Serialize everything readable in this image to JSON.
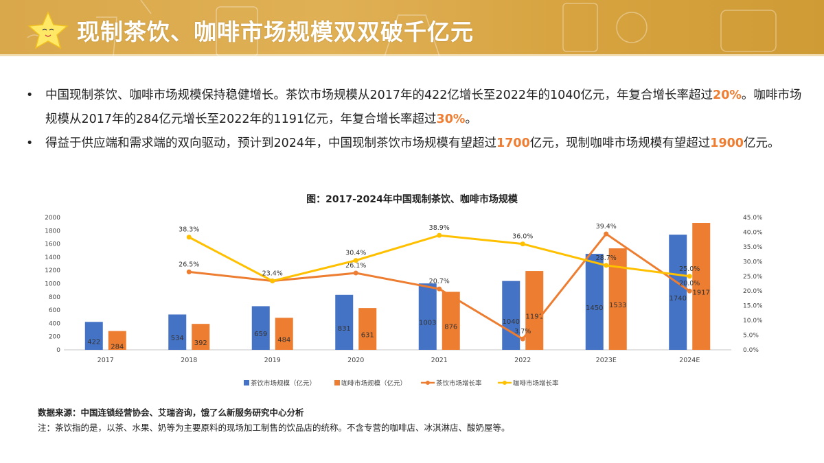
{
  "header": {
    "title": "现制茶饮、咖啡市场规模双双破千亿元",
    "icon": "star-mascot-icon"
  },
  "bullets": [
    {
      "parts": [
        {
          "t": "中国现制茶饮、咖啡市场规模保持稳健增长。茶饮市场规模从2017年的422亿增长至2022年的1040亿元，年复合增长率超过"
        },
        {
          "t": "20%",
          "hl": true
        },
        {
          "t": "。咖啡市场规模从2017年的284亿元增长至2022年的1191亿元，年复合增长率超过"
        },
        {
          "t": "30%",
          "hl": true
        },
        {
          "t": "。"
        }
      ]
    },
    {
      "parts": [
        {
          "t": "得益于供应端和需求端的双向驱动，预计到2024年，中国现制茶饮市场规模有望超过"
        },
        {
          "t": "1700",
          "hl": true
        },
        {
          "t": "亿元，现制咖啡市场规模有望超过"
        },
        {
          "t": "1900",
          "hl": true
        },
        {
          "t": "亿元。"
        }
      ]
    }
  ],
  "chart_data": {
    "type": "bar+line",
    "title": "图：2017-2024年中国现制茶饮、咖啡市场规模",
    "categories": [
      "2017",
      "2018",
      "2019",
      "2020",
      "2021",
      "2022",
      "2023E",
      "2024E"
    ],
    "y_left": {
      "range": [
        0,
        2000
      ],
      "ticks": [
        0,
        200,
        400,
        600,
        800,
        1000,
        1200,
        1400,
        1600,
        1800,
        2000
      ]
    },
    "y_right": {
      "range": [
        0,
        45
      ],
      "ticks": [
        "0.0%",
        "5.0%",
        "10.0%",
        "15.0%",
        "20.0%",
        "25.0%",
        "30.0%",
        "35.0%",
        "40.0%",
        "45.0%"
      ]
    },
    "legend_position": "bottom",
    "series": [
      {
        "name": "茶饮市场规模（亿元）",
        "type": "bar",
        "axis": "left",
        "color": "#4472c4",
        "values": [
          422,
          534,
          659,
          831,
          1003,
          1040,
          1450,
          1740
        ]
      },
      {
        "name": "咖啡市场规模（亿元）",
        "type": "bar",
        "axis": "left",
        "color": "#ed7d31",
        "values": [
          284,
          392,
          484,
          631,
          876,
          1191,
          1533,
          1917
        ]
      },
      {
        "name": "茶饮市场增长率",
        "type": "line",
        "axis": "right",
        "color": "#ed7d31",
        "values": [
          null,
          26.5,
          23.4,
          26.1,
          20.7,
          3.7,
          39.4,
          20.0
        ],
        "labels": [
          "",
          "26.5%",
          "",
          "26.1%",
          "20.7%",
          "3.7%",
          "39.4%",
          "20.0%"
        ]
      },
      {
        "name": "咖啡市场增长率",
        "type": "line",
        "axis": "right",
        "color": "#ffc000",
        "values": [
          null,
          38.3,
          23.4,
          30.4,
          38.9,
          36.0,
          28.7,
          25.0
        ],
        "labels": [
          "",
          "38.3%",
          "23.4%",
          "30.4%",
          "38.9%",
          "36.0%",
          "28.7%",
          "25.0%"
        ]
      }
    ]
  },
  "footer": {
    "source": "数据来源：中国连锁经营协会、艾瑞咨询，饿了么新服务研究中心分析",
    "note": "注：茶饮指的是，以茶、水果、奶等为主要原料的现场加工制售的饮品店的统称。不含专营的咖啡店、冰淇淋店、酸奶屋等。"
  }
}
